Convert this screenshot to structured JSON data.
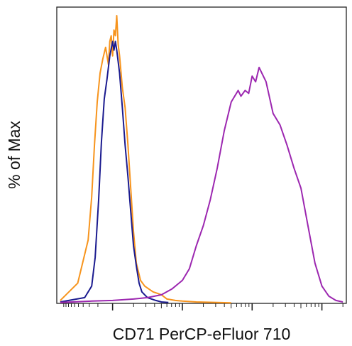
{
  "chart_data": {
    "type": "line",
    "title": "",
    "xlabel": "CD71 PerCP-eFluor 710",
    "ylabel": "% of Max",
    "x_scale": "logicle",
    "x_decades": [
      0,
      1,
      2,
      3,
      4
    ],
    "xlim": [
      -0.8,
      3.35
    ],
    "ylim": [
      0,
      100
    ],
    "grid": false,
    "legend": "none",
    "series": [
      {
        "color": "#f7941d",
        "x": [
          -0.75,
          -0.5,
          -0.35,
          -0.3,
          -0.26,
          -0.22,
          -0.18,
          -0.14,
          -0.1,
          -0.06,
          -0.04,
          -0.02,
          0.0,
          0.02,
          0.04,
          0.06,
          0.08,
          0.1,
          0.14,
          0.18,
          0.22,
          0.26,
          0.3,
          0.34,
          0.4,
          0.46,
          0.52,
          0.58,
          0.64,
          0.7,
          0.78,
          0.9,
          1.0,
          1.2,
          1.5,
          1.7
        ],
        "y": [
          1,
          7,
          22,
          37,
          55,
          70,
          80,
          85,
          89,
          83,
          91,
          93,
          86,
          95,
          93,
          100,
          90,
          86,
          75,
          68,
          55,
          40,
          25,
          14,
          8,
          6,
          5,
          4,
          3.5,
          3,
          1.5,
          1,
          0.8,
          0.5,
          0.3,
          0.2
        ]
      },
      {
        "color": "#1b1b8f",
        "x": [
          -0.75,
          -0.4,
          -0.3,
          -0.25,
          -0.2,
          -0.16,
          -0.12,
          -0.08,
          -0.04,
          0.0,
          0.02,
          0.04,
          0.06,
          0.08,
          0.1,
          0.14,
          0.18,
          0.22,
          0.26,
          0.3,
          0.34,
          0.38,
          0.42,
          0.46,
          0.5,
          0.56,
          0.62,
          0.7,
          0.8
        ],
        "y": [
          0.5,
          2,
          6,
          16,
          36,
          56,
          71,
          78,
          86,
          91,
          88,
          91,
          88,
          84,
          80,
          68,
          55,
          44,
          32,
          20,
          13,
          7,
          4,
          3,
          2,
          1.5,
          1,
          0.5,
          0.3
        ]
      },
      {
        "color": "#9c27b0",
        "x": [
          -0.75,
          -0.3,
          0.0,
          0.3,
          0.5,
          0.7,
          0.85,
          1.0,
          1.1,
          1.2,
          1.3,
          1.4,
          1.5,
          1.6,
          1.7,
          1.8,
          1.84,
          1.9,
          1.95,
          2.0,
          2.05,
          2.1,
          2.2,
          2.3,
          2.4,
          2.5,
          2.6,
          2.7,
          2.8,
          2.9,
          3.0,
          3.1,
          3.2,
          3.3
        ],
        "y": [
          0.3,
          0.8,
          1,
          1.5,
          2,
          3,
          5,
          8,
          12,
          20,
          27,
          36,
          47,
          60,
          70,
          74,
          72,
          74,
          73,
          79,
          77,
          82,
          77,
          66,
          62,
          55,
          47,
          40,
          27,
          14,
          6,
          2.5,
          1,
          0.5
        ]
      }
    ]
  }
}
